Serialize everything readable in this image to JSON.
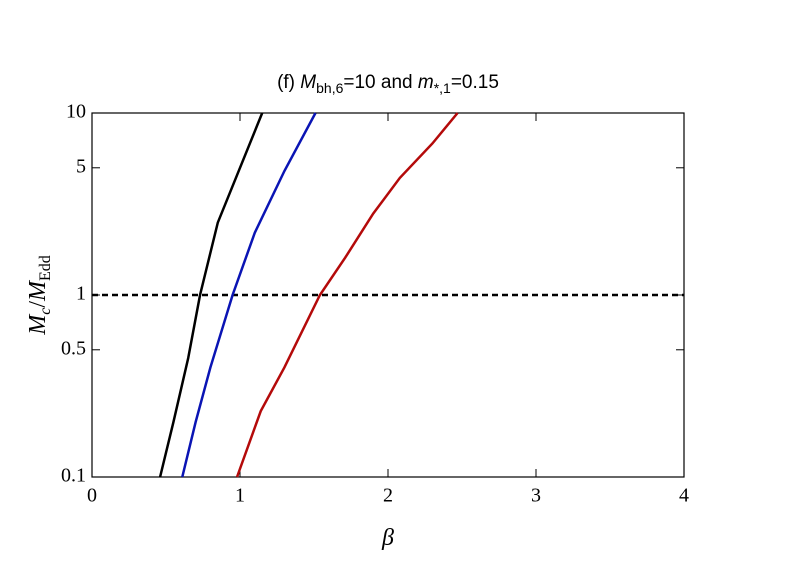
{
  "chart_data": {
    "type": "line",
    "title": [
      "(f) ",
      "M",
      "bh,6",
      "=10 and ",
      "m",
      "*,1",
      "=0.15"
    ],
    "x_label": "β",
    "y_label": [
      "M",
      "c",
      "/",
      "M",
      "Edd"
    ],
    "xlim": [
      0,
      4
    ],
    "xticks": [
      0,
      1,
      2,
      3,
      4
    ],
    "ylim": [
      0.1,
      10
    ],
    "yticks": [
      0.1,
      0.5,
      1,
      5,
      10
    ],
    "log_y": true,
    "reference_line": {
      "value": 1,
      "color": "#000000",
      "style": "dashed"
    },
    "series": [
      {
        "color": "#000000",
        "x": [
          0.46,
          0.55,
          0.65,
          0.73,
          0.85,
          1.0,
          1.15
        ],
        "values": [
          0.1,
          0.2,
          0.45,
          1,
          2.5,
          5,
          10
        ]
      },
      {
        "color": "#0a14b4",
        "x": [
          0.61,
          0.7,
          0.8,
          0.95,
          1.1,
          1.3,
          1.51
        ],
        "values": [
          0.1,
          0.2,
          0.4,
          1,
          2.2,
          4.8,
          10
        ]
      },
      {
        "color": "#b40a0a",
        "x": [
          0.98,
          1.14,
          1.3,
          1.54,
          1.71,
          1.9,
          2.08,
          2.3,
          2.47
        ],
        "values": [
          0.1,
          0.23,
          0.4,
          1,
          1.6,
          2.8,
          4.4,
          6.8,
          10
        ]
      }
    ]
  }
}
